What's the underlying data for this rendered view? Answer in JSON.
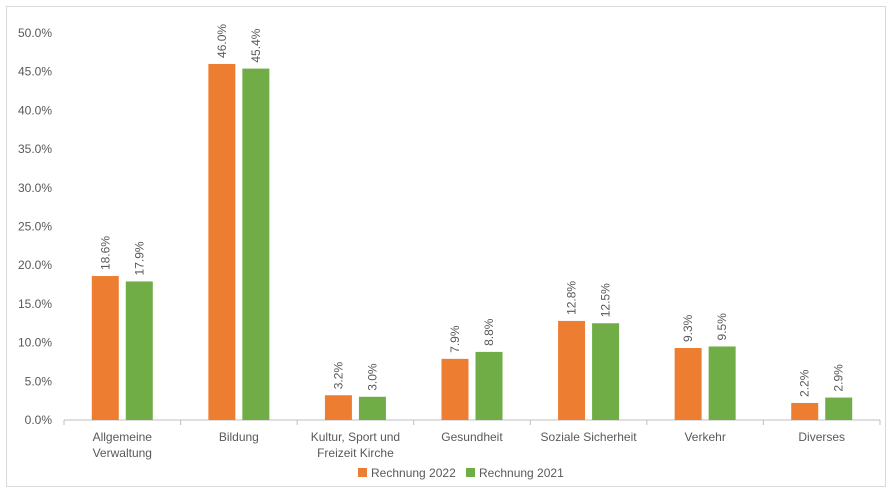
{
  "chart_data": {
    "type": "bar",
    "title": "",
    "xlabel": "",
    "ylabel": "",
    "ylim": [
      0,
      50
    ],
    "yticks": [
      "0.0%",
      "5.0%",
      "10.0%",
      "15.0%",
      "20.0%",
      "25.0%",
      "30.0%",
      "35.0%",
      "40.0%",
      "45.0%",
      "50.0%"
    ],
    "grid": false,
    "legend_position": "bottom",
    "categories": [
      [
        "Allgemeine",
        "Verwaltung"
      ],
      [
        "Bildung"
      ],
      [
        "Kultur, Sport und",
        "Freizeit Kirche"
      ],
      [
        "Gesundheit"
      ],
      [
        "Soziale Sicherheit"
      ],
      [
        "Verkehr"
      ],
      [
        "Diverses"
      ]
    ],
    "series": [
      {
        "name": "Rechnung 2022",
        "color": "#ed7d31",
        "values": [
          18.6,
          46.0,
          3.2,
          7.9,
          12.8,
          9.3,
          2.2
        ],
        "labels": [
          "18.6%",
          "46.0%",
          "3.2%",
          "7.9%",
          "12.8%",
          "9.3%",
          "2.2%"
        ]
      },
      {
        "name": "Rechnung 2021",
        "color": "#70ad47",
        "values": [
          17.9,
          45.4,
          3.0,
          8.8,
          12.5,
          9.5,
          2.9
        ],
        "labels": [
          "17.9%",
          "45.4%",
          "3.0%",
          "8.8%",
          "12.5%",
          "9.5%",
          "2.9%"
        ]
      }
    ]
  }
}
